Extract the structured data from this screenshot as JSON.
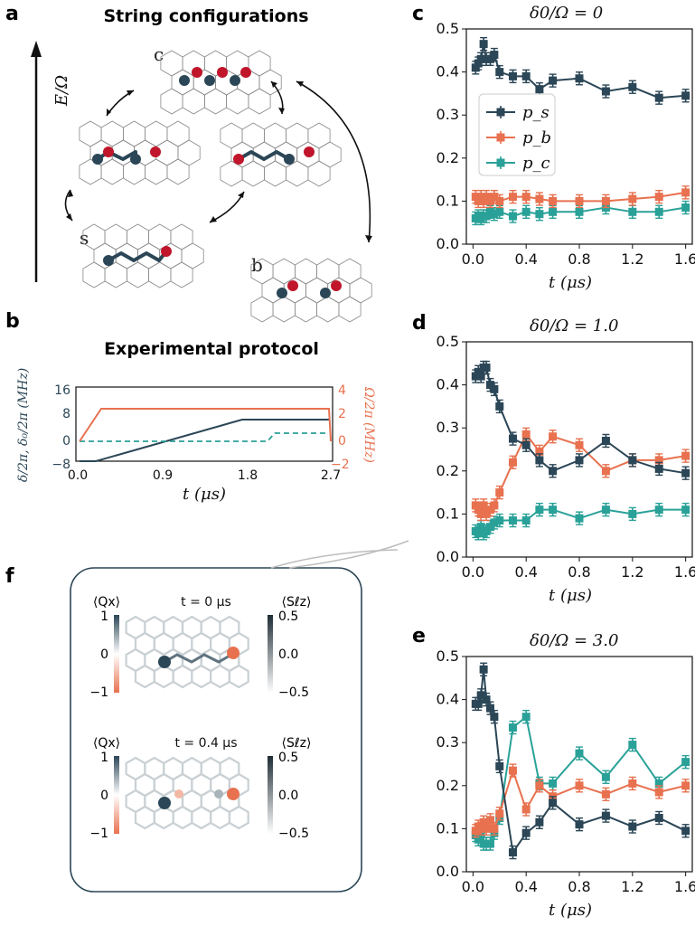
{
  "colors": {
    "s": "#2b4656",
    "b": "#e8714f",
    "c": "#2aa198",
    "delta": "#2b4656",
    "delta0": "#2aa198",
    "omega": "#e8714f"
  },
  "panel_labels": {
    "a": "a",
    "b": "b",
    "c": "c",
    "d": "d",
    "e": "e",
    "f": "f"
  },
  "panel_a": {
    "title": "String configurations",
    "energy_axis": "E/Ω",
    "config_labels": {
      "c": "c",
      "s": "s",
      "b": "b"
    }
  },
  "panel_b": {
    "title": "Experimental protocol",
    "left_axis": "δ/2π, δ₀/2π (MHz)",
    "right_axis": "Ω/2π (MHz)",
    "xlabel": "t (μs)",
    "left_ticks": [
      "16",
      "8",
      "0",
      "−8"
    ],
    "right_ticks": [
      "4",
      "2",
      "0",
      "−2"
    ],
    "x_ticks": [
      "0.0",
      "0.9",
      "1.8",
      "2.7"
    ]
  },
  "panel_f": {
    "snapshots": [
      {
        "left_title": "⟨Qx⟩",
        "time": "t = 0 μs",
        "right_title": "⟨Sℓz⟩",
        "left_ticks": [
          "1",
          "0",
          "−1"
        ],
        "right_ticks": [
          "0.5",
          "0.0",
          "−0.5"
        ]
      },
      {
        "left_title": "⟨Qx⟩",
        "time": "t = 0.4 μs",
        "right_title": "⟨Sℓz⟩",
        "left_ticks": [
          "1",
          "0",
          "−1"
        ],
        "right_ticks": [
          "0.5",
          "0.0",
          "−0.5"
        ]
      }
    ]
  },
  "chart_data": [
    {
      "id": "c",
      "type": "line",
      "title": "δ0/Ω = 0",
      "xlabel": "t (μs)",
      "ylabel": "",
      "xlim": [
        -0.05,
        1.65
      ],
      "ylim": [
        0.0,
        0.5
      ],
      "x_ticks": [
        "0.0",
        "0.4",
        "0.8",
        "1.2",
        "1.6"
      ],
      "y_ticks": [
        "0.0",
        "0.1",
        "0.2",
        "0.3",
        "0.4",
        "0.5"
      ],
      "legend": [
        "p_s",
        "p_b",
        "p_c"
      ],
      "legend_position": "center-left",
      "x": [
        0.02,
        0.04,
        0.06,
        0.08,
        0.1,
        0.13,
        0.16,
        0.2,
        0.3,
        0.4,
        0.5,
        0.6,
        0.8,
        1.0,
        1.2,
        1.4,
        1.6
      ],
      "series": [
        {
          "name": "p_s",
          "values": [
            0.41,
            0.42,
            0.43,
            0.465,
            0.43,
            0.43,
            0.44,
            0.4,
            0.39,
            0.39,
            0.36,
            0.38,
            0.385,
            0.355,
            0.365,
            0.34,
            0.345
          ]
        },
        {
          "name": "p_b",
          "values": [
            0.11,
            0.1,
            0.11,
            0.1,
            0.11,
            0.1,
            0.11,
            0.1,
            0.11,
            0.11,
            0.105,
            0.1,
            0.1,
            0.1,
            0.105,
            0.11,
            0.12
          ]
        },
        {
          "name": "p_c",
          "values": [
            0.06,
            0.065,
            0.06,
            0.065,
            0.065,
            0.075,
            0.07,
            0.075,
            0.065,
            0.075,
            0.07,
            0.075,
            0.075,
            0.085,
            0.075,
            0.075,
            0.085
          ]
        }
      ]
    },
    {
      "id": "d",
      "type": "line",
      "title": "δ0/Ω = 1.0",
      "xlabel": "t (μs)",
      "ylabel": "",
      "xlim": [
        -0.05,
        1.65
      ],
      "ylim": [
        0.0,
        0.5
      ],
      "x_ticks": [
        "0.0",
        "0.4",
        "0.8",
        "1.2",
        "1.6"
      ],
      "y_ticks": [
        "0.0",
        "0.1",
        "0.2",
        "0.3",
        "0.4",
        "0.5"
      ],
      "x": [
        0.02,
        0.04,
        0.06,
        0.08,
        0.1,
        0.13,
        0.16,
        0.2,
        0.3,
        0.4,
        0.5,
        0.6,
        0.8,
        1.0,
        1.2,
        1.4,
        1.6
      ],
      "series": [
        {
          "name": "p_s",
          "values": [
            0.42,
            0.43,
            0.42,
            0.44,
            0.44,
            0.4,
            0.39,
            0.35,
            0.275,
            0.26,
            0.225,
            0.2,
            0.225,
            0.27,
            0.225,
            0.205,
            0.195
          ]
        },
        {
          "name": "p_b",
          "values": [
            0.12,
            0.11,
            0.1,
            0.12,
            0.1,
            0.11,
            0.12,
            0.15,
            0.22,
            0.285,
            0.245,
            0.28,
            0.26,
            0.2,
            0.225,
            0.225,
            0.235
          ]
        },
        {
          "name": "p_c",
          "values": [
            0.06,
            0.055,
            0.07,
            0.055,
            0.06,
            0.07,
            0.08,
            0.085,
            0.085,
            0.085,
            0.11,
            0.11,
            0.09,
            0.11,
            0.1,
            0.11,
            0.11
          ]
        }
      ]
    },
    {
      "id": "e",
      "type": "line",
      "title": "δ0/Ω = 3.0",
      "xlabel": "t (μs)",
      "ylabel": "",
      "xlim": [
        -0.05,
        1.65
      ],
      "ylim": [
        0.0,
        0.5
      ],
      "x_ticks": [
        "0.0",
        "0.4",
        "0.8",
        "1.2",
        "1.6"
      ],
      "y_ticks": [
        "0.0",
        "0.1",
        "0.2",
        "0.3",
        "0.4",
        "0.5"
      ],
      "x": [
        0.02,
        0.04,
        0.06,
        0.08,
        0.1,
        0.13,
        0.16,
        0.2,
        0.3,
        0.4,
        0.5,
        0.6,
        0.8,
        1.0,
        1.2,
        1.4,
        1.6
      ],
      "series": [
        {
          "name": "p_s",
          "values": [
            0.39,
            0.39,
            0.41,
            0.47,
            0.4,
            0.38,
            0.36,
            0.245,
            0.045,
            0.09,
            0.115,
            0.16,
            0.11,
            0.13,
            0.105,
            0.125,
            0.095
          ]
        },
        {
          "name": "p_b",
          "values": [
            0.095,
            0.105,
            0.1,
            0.115,
            0.1,
            0.12,
            0.1,
            0.135,
            0.235,
            0.145,
            0.2,
            0.175,
            0.2,
            0.18,
            0.205,
            0.185,
            0.2
          ]
        },
        {
          "name": "p_c",
          "values": [
            0.085,
            0.075,
            0.09,
            0.065,
            0.065,
            0.065,
            0.09,
            0.125,
            0.335,
            0.36,
            0.205,
            0.205,
            0.275,
            0.22,
            0.295,
            0.205,
            0.255
          ]
        }
      ]
    }
  ]
}
